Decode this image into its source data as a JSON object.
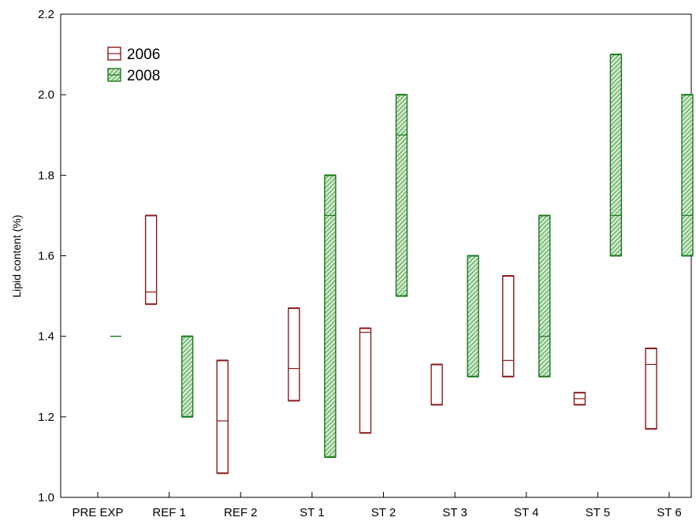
{
  "chart_data": {
    "type": "box",
    "title": "",
    "xlabel": "",
    "ylabel": "Lipid content (%)",
    "ylim": [
      1.0,
      2.2
    ],
    "yticks": [
      "1.0",
      "1.2",
      "1.4",
      "1.6",
      "1.8",
      "2.0",
      "2.2"
    ],
    "ytick_values": [
      1.0,
      1.2,
      1.4,
      1.6,
      1.8,
      2.0,
      2.2
    ],
    "categories": [
      "PRE EXP",
      "REF 1",
      "REF 2",
      "ST 1",
      "ST 2",
      "ST 3",
      "ST 4",
      "ST 5",
      "ST 6"
    ],
    "grid": false,
    "legend_position": "top-left",
    "series": [
      {
        "name": "2006",
        "color": "#8b1a1a",
        "fill": "none",
        "boxes": [
          null,
          {
            "low": 1.48,
            "median": 1.51,
            "high": 1.7
          },
          {
            "low": 1.06,
            "median": 1.19,
            "high": 1.34
          },
          {
            "low": 1.24,
            "median": 1.32,
            "high": 1.47
          },
          {
            "low": 1.16,
            "median": 1.41,
            "high": 1.42
          },
          {
            "low": 1.23,
            "median": 1.23,
            "high": 1.33
          },
          {
            "low": 1.3,
            "median": 1.34,
            "high": 1.55
          },
          {
            "low": 1.23,
            "median": 1.245,
            "high": 1.26
          },
          {
            "low": 1.17,
            "median": 1.33,
            "high": 1.37
          }
        ]
      },
      {
        "name": "2008",
        "color": "#1a7a1a",
        "fill": "hatched-green",
        "boxes": [
          {
            "low": 1.4,
            "median": 1.4,
            "high": 1.4
          },
          {
            "low": 1.2,
            "median": 1.2,
            "high": 1.4
          },
          null,
          {
            "low": 1.1,
            "median": 1.7,
            "high": 1.8
          },
          {
            "low": 1.5,
            "median": 1.9,
            "high": 2.0
          },
          {
            "low": 1.3,
            "median": 1.3,
            "high": 1.6
          },
          {
            "low": 1.3,
            "median": 1.4,
            "high": 1.7
          },
          {
            "low": 1.6,
            "median": 1.7,
            "high": 2.1
          },
          {
            "low": 1.6,
            "median": 1.7,
            "high": 2.0
          }
        ]
      }
    ]
  }
}
